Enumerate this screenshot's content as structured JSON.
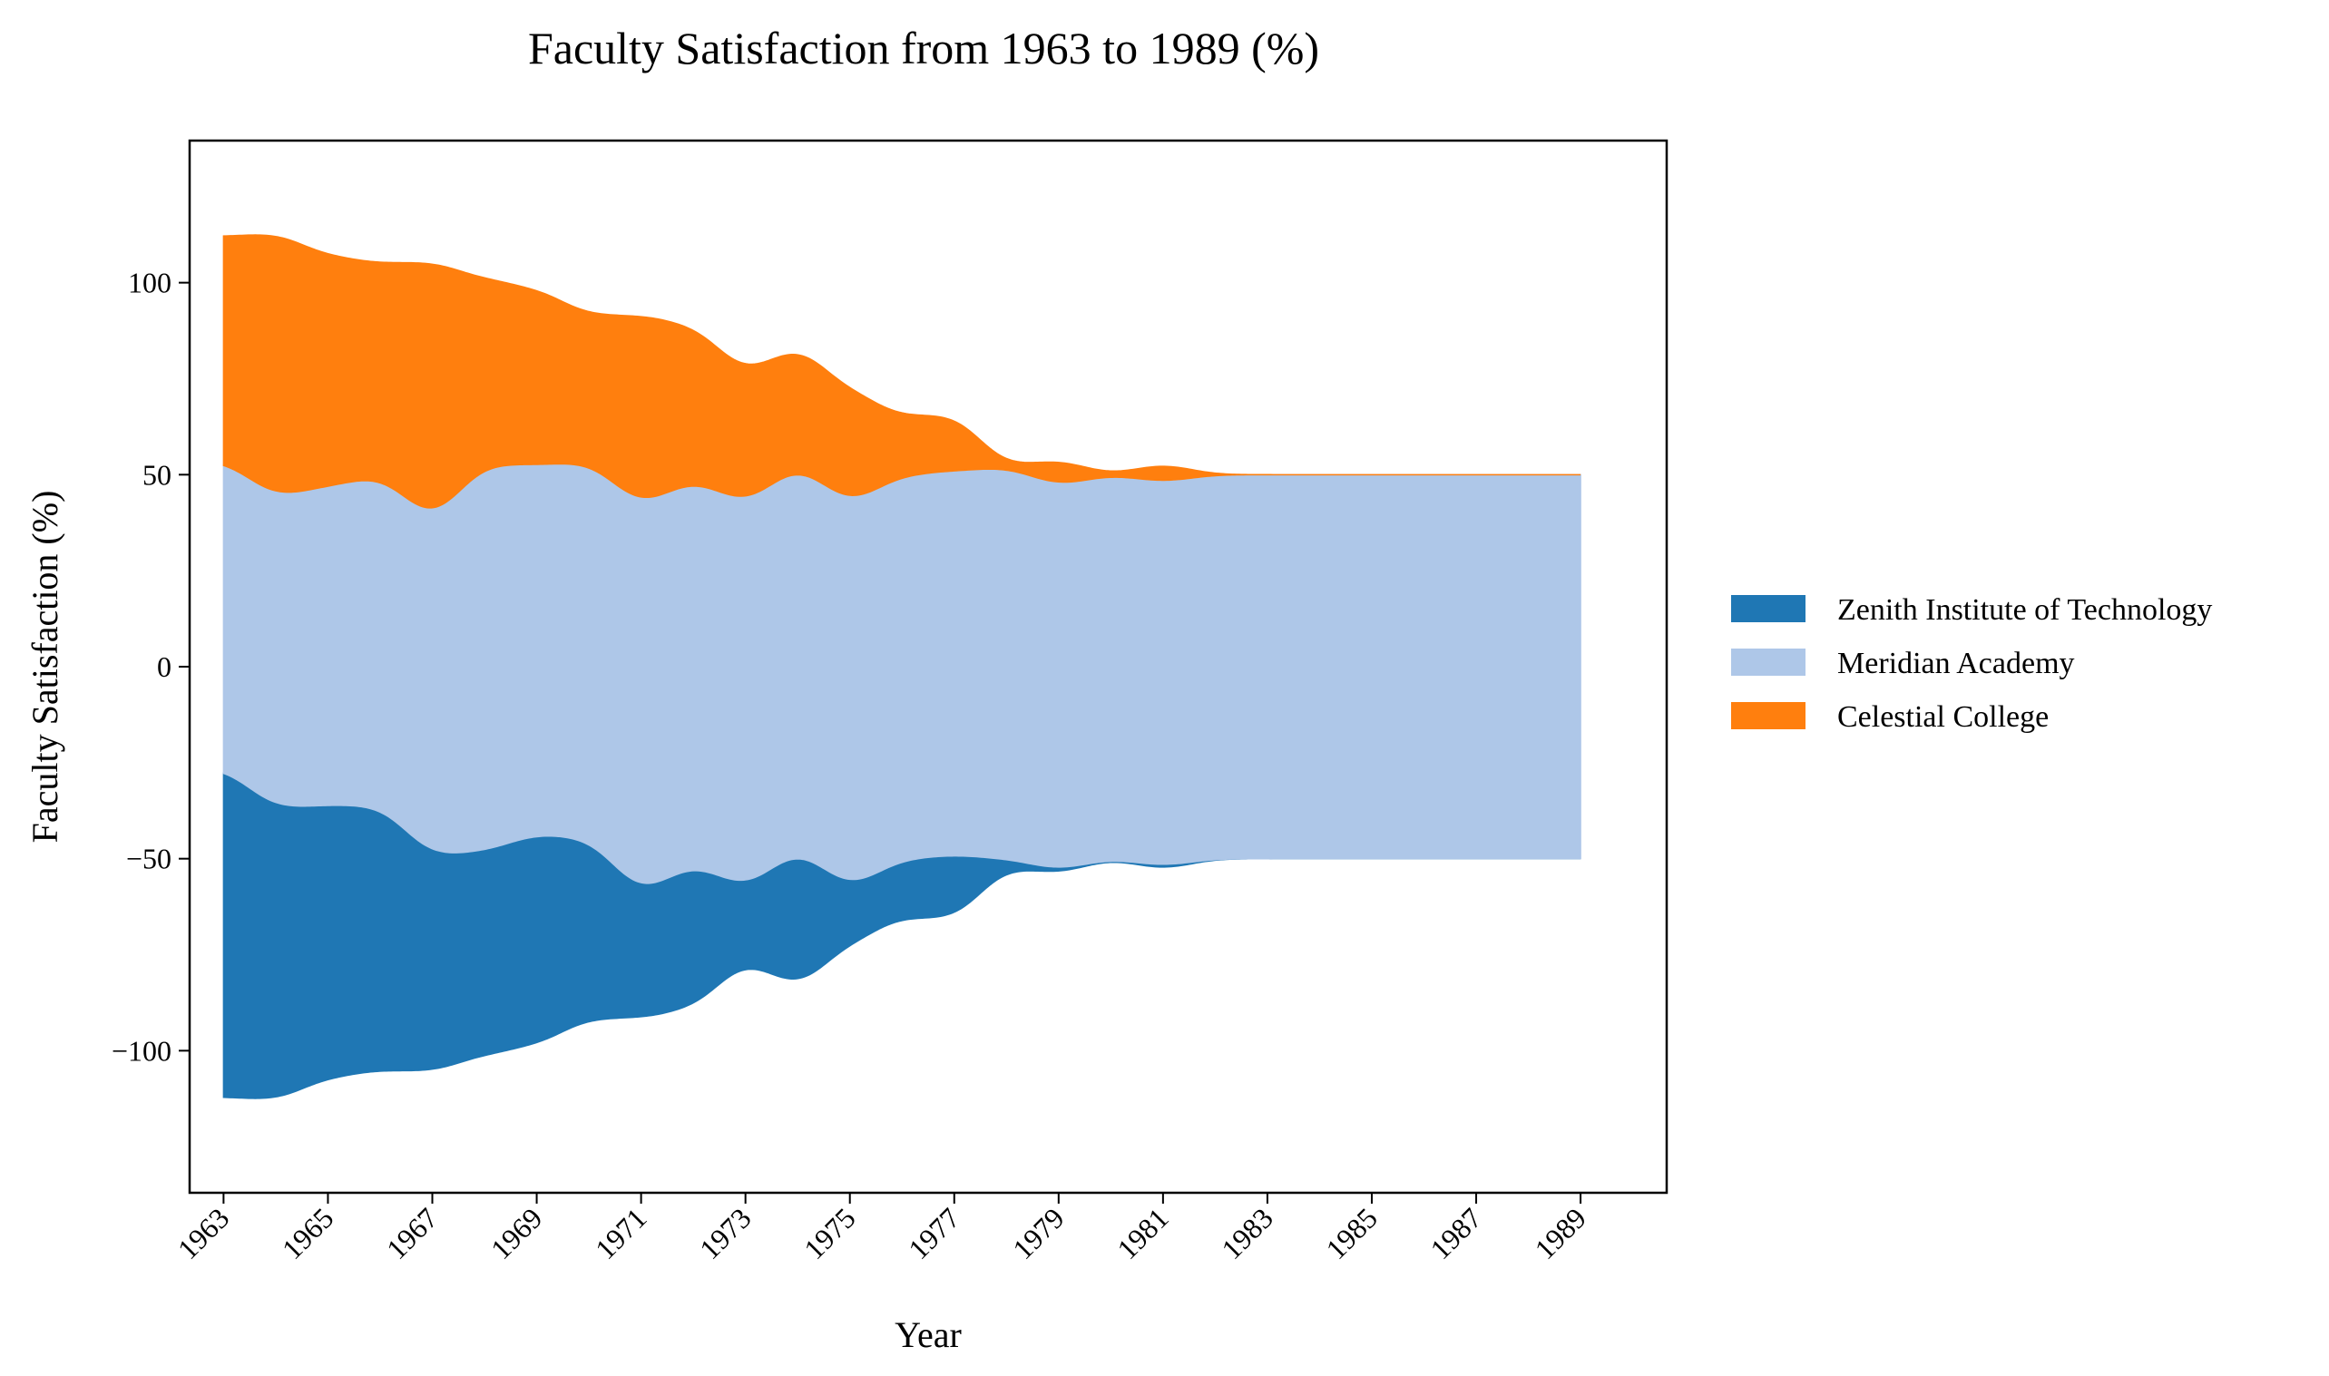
{
  "chart_data": {
    "type": "area",
    "subtype": "streamgraph",
    "title": "Faculty Satisfaction from 1963 to 1989 (%)",
    "xlabel": "Year",
    "ylabel": "Faculty Satisfaction (%)",
    "x": [
      1963,
      1964,
      1965,
      1966,
      1967,
      1968,
      1969,
      1970,
      1971,
      1972,
      1973,
      1974,
      1975,
      1976,
      1977,
      1978,
      1979,
      1980,
      1981,
      1982,
      1983,
      1984,
      1985,
      1986,
      1987,
      1988,
      1989
    ],
    "xticks": [
      1963,
      1965,
      1967,
      1969,
      1971,
      1973,
      1975,
      1977,
      1979,
      1981,
      1983,
      1985,
      1987,
      1989
    ],
    "yticks": [
      -100,
      -50,
      0,
      50,
      100
    ],
    "ytick_labels": [
      "−100",
      "−50",
      "0",
      "50",
      "100"
    ],
    "xlim": [
      1962.35,
      1990.65
    ],
    "ylim": [
      -137,
      137
    ],
    "grid": false,
    "legend": "right",
    "series": [
      {
        "name": "Zenith Institute of Technology",
        "color": "#1f77b4",
        "values": [
          86,
          76,
          71,
          69,
          56,
          53,
          55,
          47,
          32,
          38,
          18,
          37,
          14,
          15,
          17,
          2,
          1,
          0,
          1,
          0,
          0,
          0,
          0,
          0,
          0,
          0,
          0
        ]
      },
      {
        "name": "Meridian Academy",
        "color": "#aec7e8",
        "values": [
          80,
          81,
          83,
          86,
          87,
          101,
          96,
          98,
          101,
          100,
          100,
          100,
          100,
          100,
          100,
          102,
          100,
          100,
          100,
          100,
          100,
          100,
          100,
          100,
          100,
          100,
          100
        ]
      },
      {
        "name": "Celestial College",
        "color": "#ff7f0e",
        "values": [
          58,
          69,
          60,
          55,
          68,
          48,
          46,
          38,
          50,
          40,
          34,
          31,
          30,
          15,
          15,
          0,
          7,
          0,
          5,
          0,
          0,
          0,
          0,
          0,
          0,
          0,
          0
        ]
      }
    ]
  }
}
